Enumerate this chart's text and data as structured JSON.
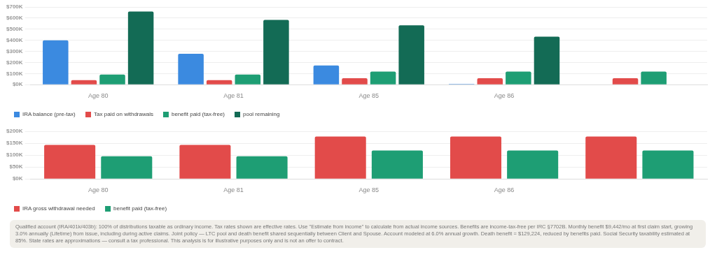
{
  "chart_data": [
    {
      "type": "bar",
      "categories": [
        "Age 80",
        "Age 81",
        "Age 85",
        "Age 86",
        null
      ],
      "series": [
        {
          "name": "IRA balance (pre-tax)",
          "color": "#3b8ae0",
          "values": [
            400000,
            278000,
            173000,
            6000,
            0
          ]
        },
        {
          "name": "Tax paid on withdrawals",
          "color": "#e24b4a",
          "values": [
            41000,
            41000,
            58000,
            58000,
            58000
          ]
        },
        {
          "name": "benefit paid (tax-free)",
          "color": "#1e9e74",
          "values": [
            91000,
            91000,
            117000,
            117000,
            117000
          ]
        },
        {
          "name": "pool remaining",
          "color": "#136b55",
          "values": [
            659000,
            583000,
            535000,
            432000,
            null
          ]
        }
      ],
      "ylim": [
        0,
        700000
      ],
      "yticks": [
        {
          "value": 0,
          "label": "$0K"
        },
        {
          "value": 100000,
          "label": "$100K"
        },
        {
          "value": 200000,
          "label": "$200K"
        },
        {
          "value": 300000,
          "label": "$300K"
        },
        {
          "value": 400000,
          "label": "$400K"
        },
        {
          "value": 500000,
          "label": "$500K"
        },
        {
          "value": 600000,
          "label": "$600K"
        },
        {
          "value": 700000,
          "label": "$700K"
        }
      ],
      "grid": "y",
      "legend": "bottom left"
    },
    {
      "type": "bar",
      "categories": [
        "Age 80",
        "Age 81",
        "Age 85",
        "Age 86",
        null
      ],
      "series": [
        {
          "name": "IRA gross withdrawal needed",
          "color": "#e24b4a",
          "values": [
            143000,
            143000,
            178000,
            178000,
            178000
          ]
        },
        {
          "name": "benefit paid (tax-free)",
          "color": "#1e9e74",
          "values": [
            95000,
            95000,
            119000,
            119000,
            119000
          ]
        }
      ],
      "ylim": [
        0,
        200000
      ],
      "yticks": [
        {
          "value": 0,
          "label": "$0K"
        },
        {
          "value": 50000,
          "label": "$50K"
        },
        {
          "value": 100000,
          "label": "$100K"
        },
        {
          "value": 150000,
          "label": "$150K"
        },
        {
          "value": 200000,
          "label": "$200K"
        }
      ],
      "grid": "y",
      "legend": "bottom left",
      "annotations": [
        "Qualified account (IRA/401k/403b): 100% of distributions taxable as ordinary income. Tax rates shown are effective rates. Use \"Estimate from income\" to calculate from actual income sources. Benefits are income-tax-free per IRC §7702B. Monthly benefit $9,442/mo at first claim start, growing 3.0% annually (Lifetime) from issue, including during active claims. Joint policy — LTC pool and death benefit shared sequentially between Client and Spouse. Account modeled at 6.0% annual growth. Death benefit = $129,224, reduced by benefits paid. Social Security taxability estimated at 85%. State rates are approximations — consult a tax professional. This analysis is for illustrative purposes only and is not an offer to contract."
      ]
    }
  ]
}
